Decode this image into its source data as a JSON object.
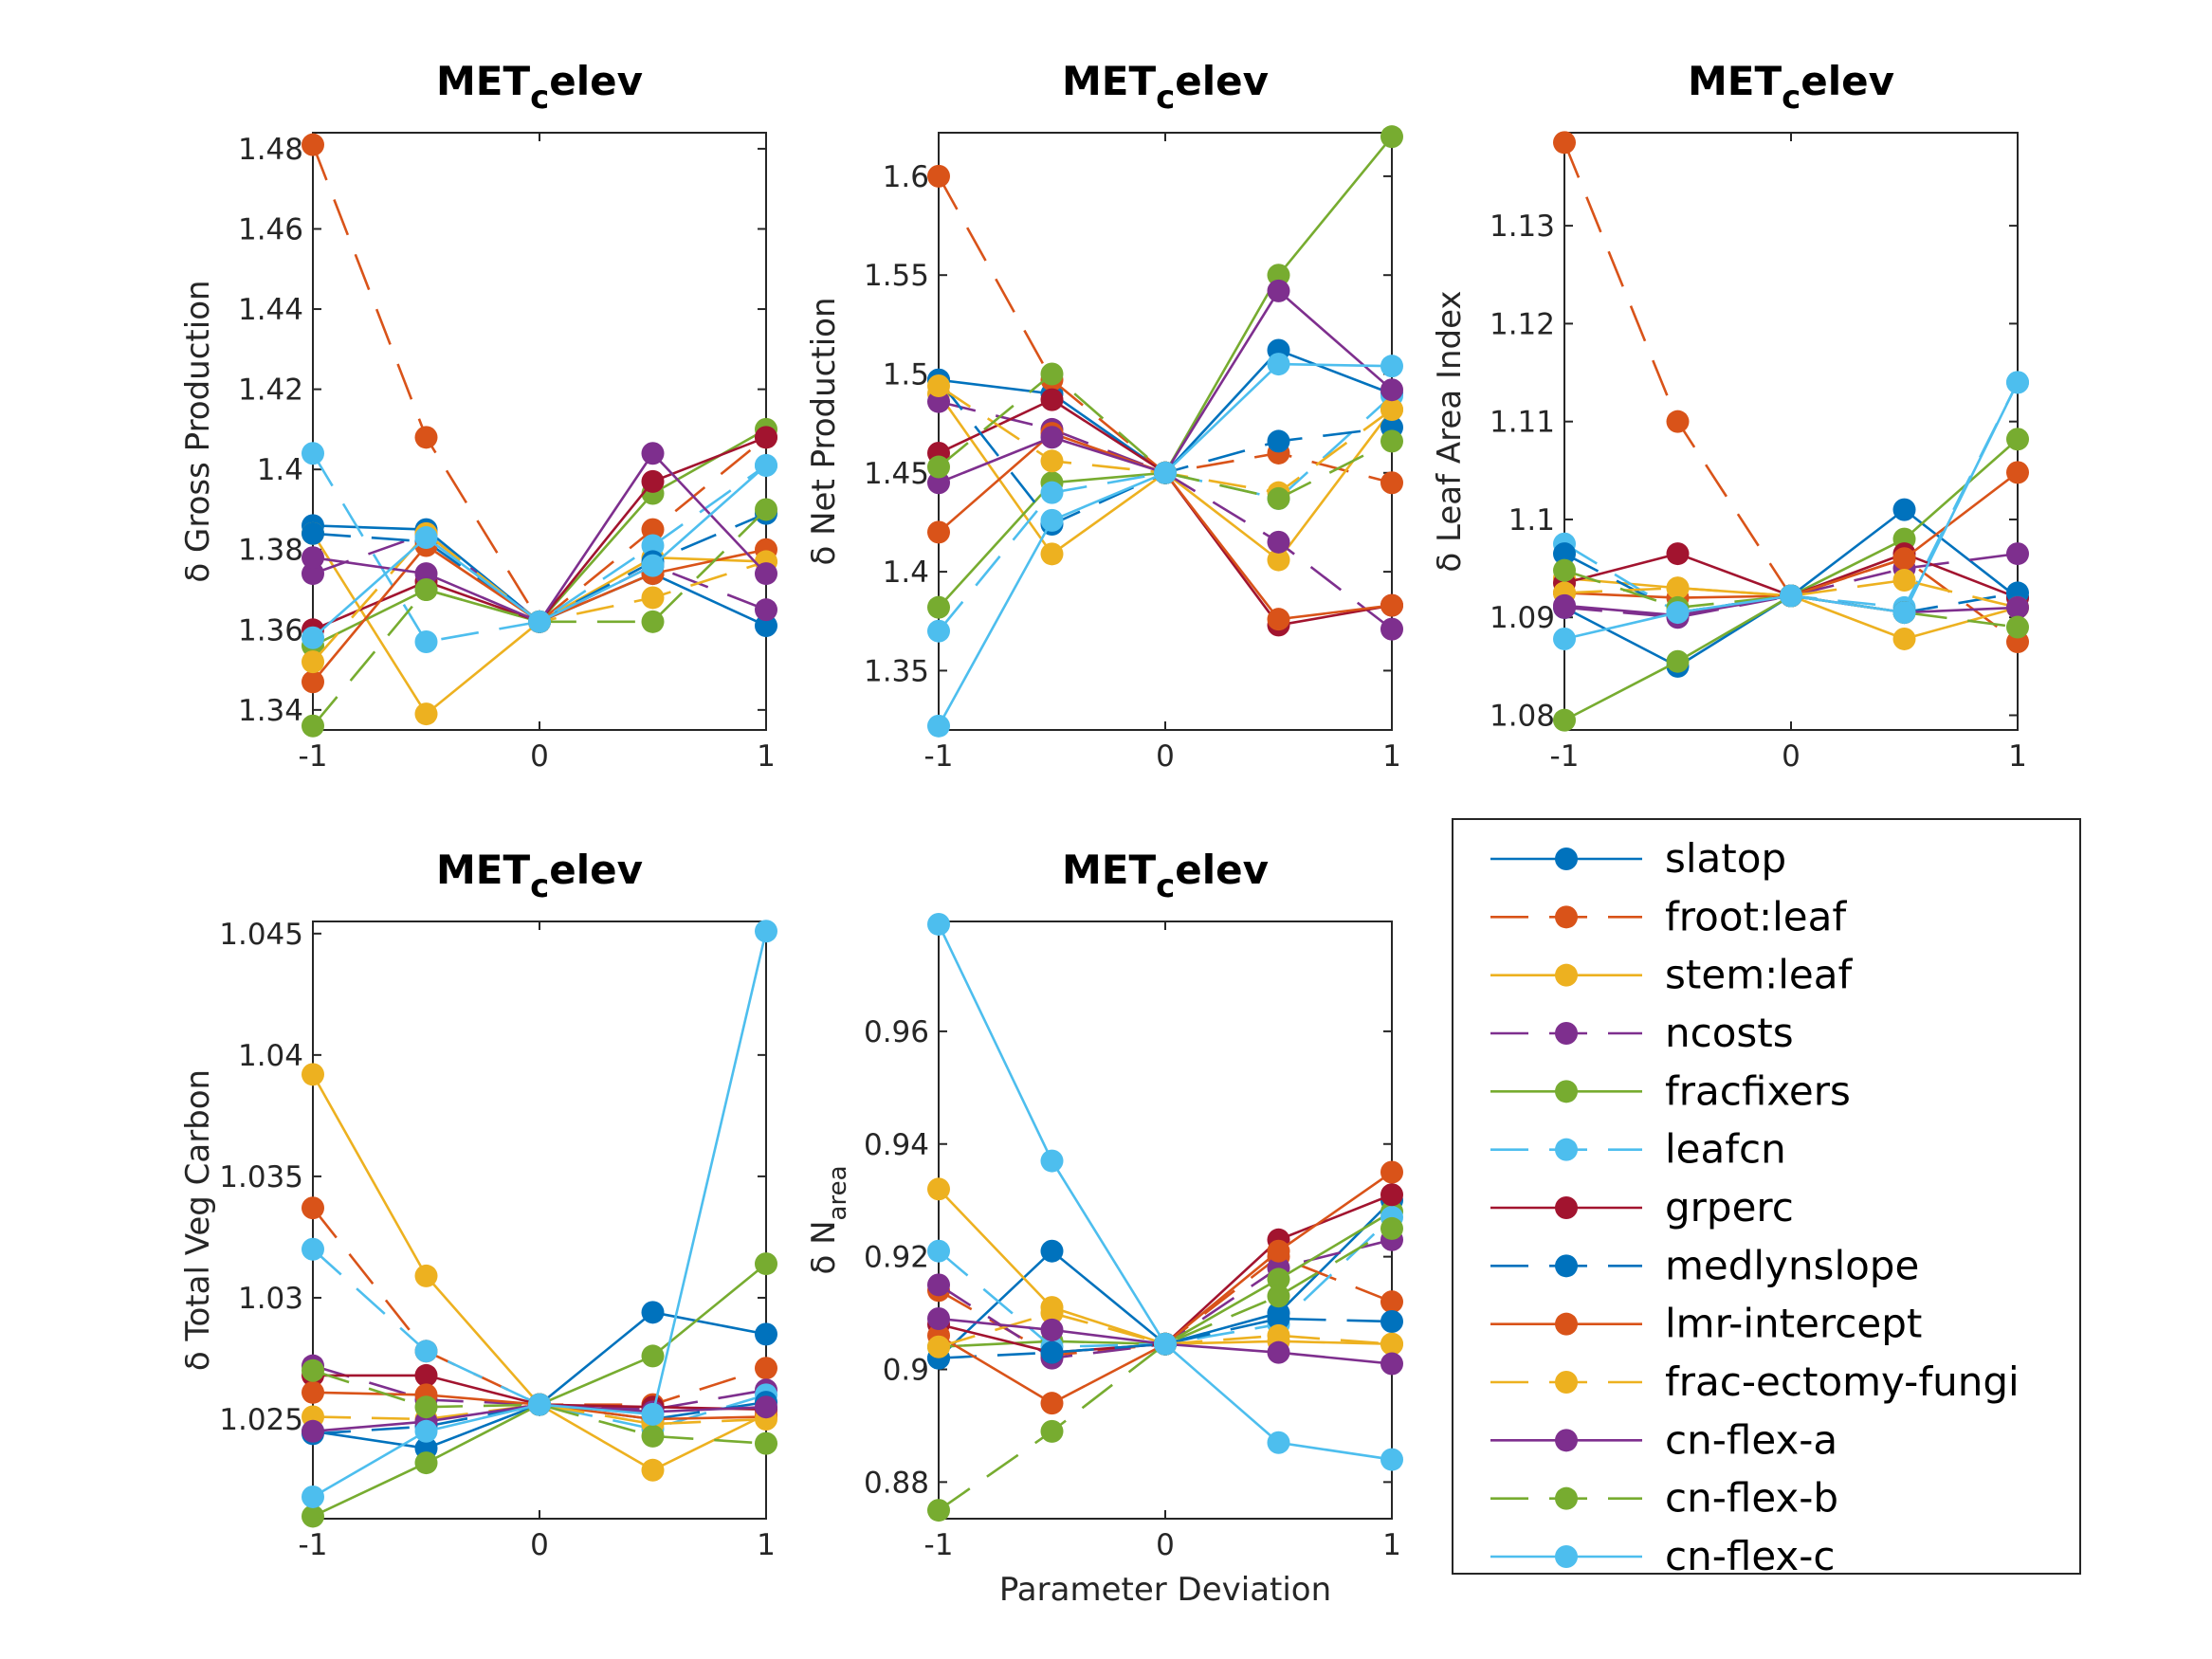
{
  "figure": {
    "legend": [
      {
        "label": "slatop",
        "color": "#0072BD",
        "dash": "solid"
      },
      {
        "label": "froot:leaf",
        "color": "#D95319",
        "dash": "dash"
      },
      {
        "label": "stem:leaf",
        "color": "#EDB120",
        "dash": "solid"
      },
      {
        "label": "ncosts",
        "color": "#7E2F8E",
        "dash": "dash"
      },
      {
        "label": "fracfixers",
        "color": "#77AC30",
        "dash": "solid"
      },
      {
        "label": "leafcn",
        "color": "#4DBEEE",
        "dash": "dash"
      },
      {
        "label": "grperc",
        "color": "#A2142F",
        "dash": "solid"
      },
      {
        "label": "medlynslope",
        "color": "#0072BD",
        "dash": "dash"
      },
      {
        "label": "lmr-intercept",
        "color": "#D95319",
        "dash": "solid"
      },
      {
        "label": "frac-ectomy-fungi",
        "color": "#EDB120",
        "dash": "dash"
      },
      {
        "label": "cn-flex-a",
        "color": "#7E2F8E",
        "dash": "solid"
      },
      {
        "label": "cn-flex-b",
        "color": "#77AC30",
        "dash": "dash"
      },
      {
        "label": "cn-flex-c",
        "color": "#4DBEEE",
        "dash": "solid"
      }
    ]
  },
  "chart_data": [
    {
      "type": "line",
      "title_main": "MET",
      "title_sub": "c",
      "title_tail": "elev",
      "ylabel": "δ Gross Production",
      "x": [
        -1,
        -0.5,
        0,
        0.5,
        1
      ],
      "ylim": [
        1.335,
        1.484
      ],
      "yticks": [
        "1.34",
        "1.36",
        "1.38",
        "1.4",
        "1.42",
        "1.44",
        "1.46",
        "1.48"
      ],
      "xticks": [
        "-1",
        "0",
        "1"
      ],
      "series": [
        {
          "name": "slatop",
          "values": [
            1.386,
            1.385,
            1.362,
            1.374,
            1.361
          ]
        },
        {
          "name": "froot:leaf",
          "values": [
            1.481,
            1.408,
            1.362,
            1.385,
            1.408
          ]
        },
        {
          "name": "stem:leaf",
          "values": [
            1.384,
            1.339,
            1.362,
            1.378,
            1.377
          ]
        },
        {
          "name": "ncosts",
          "values": [
            1.374,
            1.384,
            1.362,
            1.376,
            1.365
          ]
        },
        {
          "name": "fracfixers",
          "values": [
            1.356,
            1.37,
            1.362,
            1.394,
            1.41
          ]
        },
        {
          "name": "leafcn",
          "values": [
            1.404,
            1.357,
            1.362,
            1.381,
            1.401
          ]
        },
        {
          "name": "grperc",
          "values": [
            1.36,
            1.372,
            1.362,
            1.397,
            1.408
          ]
        },
        {
          "name": "medlynslope",
          "values": [
            1.384,
            1.382,
            1.362,
            1.377,
            1.389
          ]
        },
        {
          "name": "lmr-intercept",
          "values": [
            1.347,
            1.381,
            1.362,
            1.374,
            1.38
          ]
        },
        {
          "name": "frac-ectomy-fungi",
          "values": [
            1.352,
            1.384,
            1.362,
            1.368,
            1.377
          ]
        },
        {
          "name": "cn-flex-a",
          "values": [
            1.378,
            1.374,
            1.362,
            1.404,
            1.374
          ]
        },
        {
          "name": "cn-flex-b",
          "values": [
            1.336,
            1.37,
            1.362,
            1.362,
            1.39
          ]
        },
        {
          "name": "cn-flex-c",
          "values": [
            1.358,
            1.383,
            1.362,
            1.376,
            1.401
          ]
        }
      ]
    },
    {
      "type": "line",
      "title_main": "MET",
      "title_sub": "c",
      "title_tail": "elev",
      "ylabel": "δ Net Production",
      "x": [
        -1,
        -0.5,
        0,
        0.5,
        1
      ],
      "ylim": [
        1.32,
        1.622
      ],
      "yticks": [
        "1.35",
        "1.4",
        "1.45",
        "1.5",
        "1.55",
        "1.6"
      ],
      "xticks": [
        "-1",
        "0",
        "1"
      ],
      "series": [
        {
          "name": "slatop",
          "values": [
            1.497,
            1.49,
            1.45,
            1.512,
            1.49
          ]
        },
        {
          "name": "froot:leaf",
          "values": [
            1.6,
            1.497,
            1.45,
            1.46,
            1.445
          ]
        },
        {
          "name": "stem:leaf",
          "values": [
            1.49,
            1.409,
            1.45,
            1.406,
            1.482
          ]
        },
        {
          "name": "ncosts",
          "values": [
            1.486,
            1.472,
            1.45,
            1.415,
            1.371
          ]
        },
        {
          "name": "fracfixers",
          "values": [
            1.382,
            1.445,
            1.45,
            1.55,
            1.62
          ]
        },
        {
          "name": "leafcn",
          "values": [
            1.37,
            1.44,
            1.45,
            1.437,
            1.489
          ]
        },
        {
          "name": "grperc",
          "values": [
            1.46,
            1.487,
            1.45,
            1.373,
            1.383
          ]
        },
        {
          "name": "medlynslope",
          "values": [
            1.497,
            1.424,
            1.45,
            1.466,
            1.473
          ]
        },
        {
          "name": "lmr-intercept",
          "values": [
            1.42,
            1.47,
            1.45,
            1.376,
            1.383
          ]
        },
        {
          "name": "frac-ectomy-fungi",
          "values": [
            1.494,
            1.456,
            1.45,
            1.44,
            1.482
          ]
        },
        {
          "name": "cn-flex-a",
          "values": [
            1.445,
            1.468,
            1.45,
            1.542,
            1.492
          ]
        },
        {
          "name": "cn-flex-b",
          "values": [
            1.453,
            1.5,
            1.45,
            1.437,
            1.466
          ]
        },
        {
          "name": "cn-flex-c",
          "values": [
            1.322,
            1.426,
            1.45,
            1.505,
            1.504
          ]
        }
      ]
    },
    {
      "type": "line",
      "title_main": "MET",
      "title_sub": "c",
      "title_tail": "elev",
      "ylabel": "δ Leaf Area Index",
      "x": [
        -1,
        -0.5,
        0,
        0.5,
        1
      ],
      "ylim": [
        1.0785,
        1.1395
      ],
      "yticks": [
        "1.08",
        "1.09",
        "1.1",
        "1.11",
        "1.12",
        "1.13"
      ],
      "xticks": [
        "-1",
        "0",
        "1"
      ],
      "series": [
        {
          "name": "slatop",
          "values": [
            1.091,
            1.085,
            1.0922,
            1.101,
            1.092
          ]
        },
        {
          "name": "froot:leaf",
          "values": [
            1.1385,
            1.11,
            1.0922,
            1.096,
            1.0875
          ]
        },
        {
          "name": "stem:leaf",
          "values": [
            1.094,
            1.093,
            1.0922,
            1.0878,
            1.091
          ]
        },
        {
          "name": "ncosts",
          "values": [
            1.091,
            1.09,
            1.0922,
            1.095,
            1.0965
          ]
        },
        {
          "name": "fracfixers",
          "values": [
            1.0795,
            1.0855,
            1.0922,
            1.098,
            1.1082
          ]
        },
        {
          "name": "leafcn",
          "values": [
            1.0975,
            1.0905,
            1.0922,
            1.091,
            1.114
          ]
        },
        {
          "name": "grperc",
          "values": [
            1.0935,
            1.0965,
            1.0922,
            1.0965,
            1.092
          ]
        },
        {
          "name": "medlynslope",
          "values": [
            1.0965,
            1.0905,
            1.0922,
            1.0905,
            1.0925
          ]
        },
        {
          "name": "lmr-intercept",
          "values": [
            1.0925,
            1.092,
            1.0922,
            1.096,
            1.1048
          ]
        },
        {
          "name": "frac-ectomy-fungi",
          "values": [
            1.0925,
            1.093,
            1.0922,
            1.0938,
            1.091
          ]
        },
        {
          "name": "cn-flex-a",
          "values": [
            1.0912,
            1.0902,
            1.0922,
            1.0905,
            1.091
          ]
        },
        {
          "name": "cn-flex-b",
          "values": [
            1.0948,
            1.091,
            1.0922,
            1.0905,
            1.089
          ]
        },
        {
          "name": "cn-flex-c",
          "values": [
            1.0878,
            1.0905,
            1.0922,
            1.0905,
            1.114
          ]
        }
      ]
    },
    {
      "type": "line",
      "title_main": "MET",
      "title_sub": "c",
      "title_tail": "elev",
      "ylabel": "δ Total Veg Carbon",
      "x": [
        -1,
        -0.5,
        0,
        0.5,
        1
      ],
      "ylim": [
        1.0209,
        1.0455
      ],
      "yticks": [
        "1.025",
        "1.03",
        "1.035",
        "1.04",
        "1.045"
      ],
      "xticks": [
        "-1",
        "0",
        "1"
      ],
      "series": [
        {
          "name": "slatop",
          "values": [
            1.0245,
            1.0238,
            1.0256,
            1.0294,
            1.0285
          ]
        },
        {
          "name": "froot:leaf",
          "values": [
            1.0337,
            1.0278,
            1.0256,
            1.0256,
            1.0271
          ]
        },
        {
          "name": "stem:leaf",
          "values": [
            1.0392,
            1.0309,
            1.0256,
            1.0229,
            1.0252
          ]
        },
        {
          "name": "ncosts",
          "values": [
            1.0272,
            1.0258,
            1.0256,
            1.0254,
            1.0262
          ]
        },
        {
          "name": "fracfixers",
          "values": [
            1.021,
            1.0232,
            1.0256,
            1.0276,
            1.0314
          ]
        },
        {
          "name": "leafcn",
          "values": [
            1.032,
            1.0278,
            1.0256,
            1.0246,
            1.026
          ]
        },
        {
          "name": "grperc",
          "values": [
            1.0268,
            1.0268,
            1.0256,
            1.0255,
            1.0254
          ]
        },
        {
          "name": "medlynslope",
          "values": [
            1.0244,
            1.0247,
            1.0256,
            1.025,
            1.0257
          ]
        },
        {
          "name": "lmr-intercept",
          "values": [
            1.0261,
            1.026,
            1.0256,
            1.025,
            1.0251
          ]
        },
        {
          "name": "frac-ectomy-fungi",
          "values": [
            1.0251,
            1.025,
            1.0256,
            1.0248,
            1.025
          ]
        },
        {
          "name": "cn-flex-a",
          "values": [
            1.0245,
            1.0249,
            1.0256,
            1.0253,
            1.0255
          ]
        },
        {
          "name": "cn-flex-b",
          "values": [
            1.027,
            1.0255,
            1.0256,
            1.0243,
            1.024
          ]
        },
        {
          "name": "cn-flex-c",
          "values": [
            1.0218,
            1.0245,
            1.0256,
            1.0252,
            1.0451
          ]
        }
      ]
    },
    {
      "type": "line",
      "title_main": "MET",
      "title_sub": "c",
      "title_tail": "elev",
      "ylabel_main": "δ N",
      "ylabel_sub": "area",
      "xlabel": "Parameter Deviation",
      "x": [
        -1,
        -0.5,
        0,
        0.5,
        1
      ],
      "ylim": [
        0.8735,
        0.9795
      ],
      "yticks": [
        "0.88",
        "0.9",
        "0.92",
        "0.94",
        "0.96"
      ],
      "xticks": [
        "-1",
        "0",
        "1"
      ],
      "series": [
        {
          "name": "slatop",
          "values": [
            0.902,
            0.921,
            0.9045,
            0.91,
            0.93
          ]
        },
        {
          "name": "froot:leaf",
          "values": [
            0.914,
            0.9025,
            0.9045,
            0.92,
            0.912
          ]
        },
        {
          "name": "stem:leaf",
          "values": [
            0.932,
            0.911,
            0.9045,
            0.905,
            0.9045
          ]
        },
        {
          "name": "ncosts",
          "values": [
            0.915,
            0.902,
            0.9045,
            0.918,
            0.923
          ]
        },
        {
          "name": "fracfixers",
          "values": [
            0.904,
            0.905,
            0.9045,
            0.916,
            0.928
          ]
        },
        {
          "name": "leafcn",
          "values": [
            0.921,
            0.904,
            0.9045,
            0.908,
            0.927
          ]
        },
        {
          "name": "grperc",
          "values": [
            0.908,
            0.903,
            0.9045,
            0.923,
            0.931
          ]
        },
        {
          "name": "medlynslope",
          "values": [
            0.902,
            0.903,
            0.9045,
            0.909,
            0.9085
          ]
        },
        {
          "name": "lmr-intercept",
          "values": [
            0.906,
            0.894,
            0.9045,
            0.921,
            0.935
          ]
        },
        {
          "name": "frac-ectomy-fungi",
          "values": [
            0.904,
            0.91,
            0.9045,
            0.906,
            0.9045
          ]
        },
        {
          "name": "cn-flex-a",
          "values": [
            0.909,
            0.907,
            0.9045,
            0.903,
            0.901
          ]
        },
        {
          "name": "cn-flex-b",
          "values": [
            0.875,
            0.889,
            0.9045,
            0.913,
            0.925
          ]
        },
        {
          "name": "cn-flex-c",
          "values": [
            0.979,
            0.937,
            0.9045,
            0.887,
            0.884
          ]
        }
      ]
    }
  ]
}
